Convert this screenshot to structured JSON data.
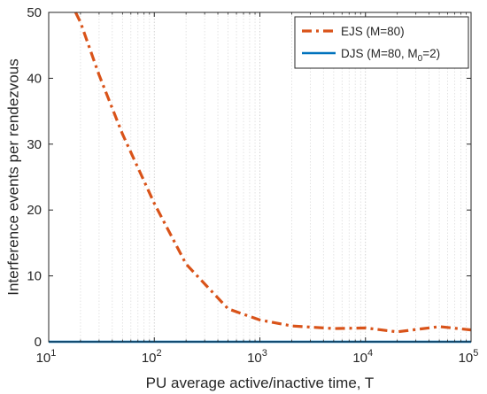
{
  "chart_data": {
    "type": "line",
    "xlabel": "PU average active/inactive time, T",
    "ylabel": "Interference events per rendezvous",
    "x_scale": "log",
    "xlim": [
      10,
      100000
    ],
    "ylim": [
      0,
      50
    ],
    "x_ticks": [
      10,
      100,
      1000,
      10000,
      100000
    ],
    "x_tick_labels": [
      {
        "base": "10",
        "exp": "1"
      },
      {
        "base": "10",
        "exp": "2"
      },
      {
        "base": "10",
        "exp": "3"
      },
      {
        "base": "10",
        "exp": "4"
      },
      {
        "base": "10",
        "exp": "5"
      }
    ],
    "y_ticks": [
      0,
      10,
      20,
      30,
      40,
      50
    ],
    "y_tick_labels": [
      "0",
      "10",
      "20",
      "30",
      "40",
      "50"
    ],
    "grid": "x-axis minor and major, dotted",
    "legend_placement": "top-right",
    "series": [
      {
        "name": "EJS (M=80)",
        "color": "#D95319",
        "style": "dash-dot",
        "x": [
          18,
          20,
          30,
          50,
          100,
          200,
          500,
          1000,
          2000,
          5000,
          10000,
          20000,
          50000,
          100000
        ],
        "y": [
          50,
          48.5,
          40.5,
          31.5,
          21,
          11.8,
          5,
          3.3,
          2.4,
          2.0,
          2.1,
          1.5,
          2.3,
          1.8
        ]
      },
      {
        "name": "DJS (M=80, M0=2)",
        "color": "#0072BD",
        "style": "solid",
        "x": [
          10,
          100000
        ],
        "y": [
          0,
          0
        ]
      }
    ],
    "legend_entries": [
      {
        "text": "EJS (M=80)"
      },
      {
        "text_before": "DJS (M=80, M",
        "subscript": "0",
        "text_after": "=2)"
      }
    ]
  }
}
